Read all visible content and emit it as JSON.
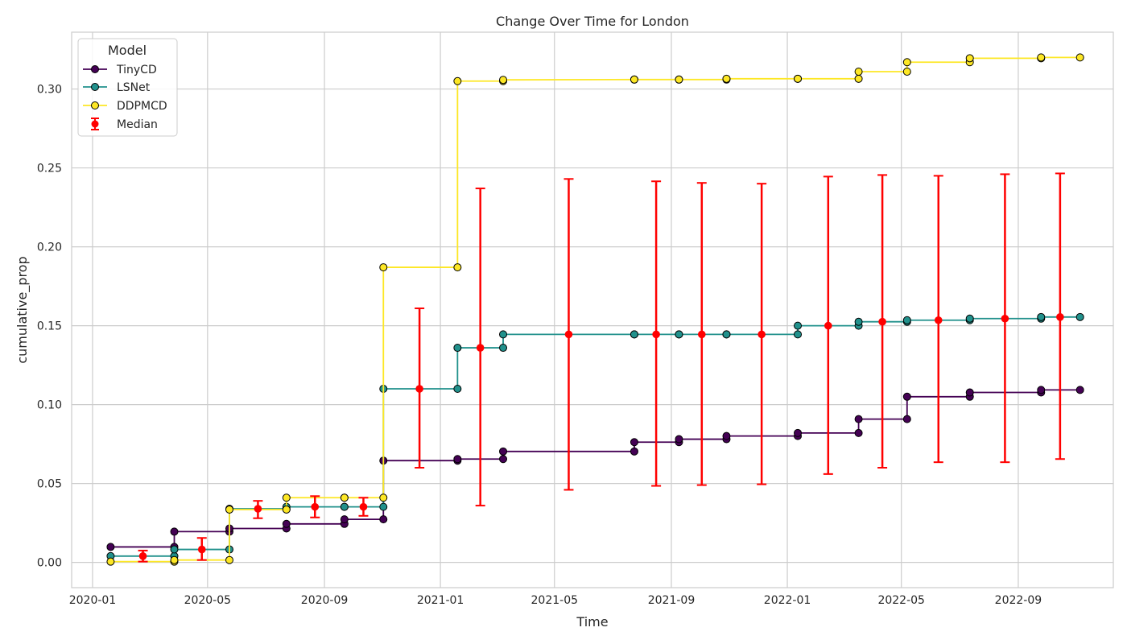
{
  "chart_data": {
    "type": "line",
    "title": "Change Over Time for London",
    "xlabel": "Time",
    "ylabel": "cumulative_prop",
    "x_ticks": [
      "2020-01",
      "2020-05",
      "2020-09",
      "2021-01",
      "2021-05",
      "2021-09",
      "2022-01",
      "2022-05",
      "2022-09"
    ],
    "y_ticks": [
      "0.00",
      "0.05",
      "0.10",
      "0.15",
      "0.20",
      "0.25",
      "0.30"
    ],
    "xlim": [
      "2019-12-10",
      "2022-12-10"
    ],
    "ylim": [
      -0.016,
      0.336
    ],
    "grid": true,
    "legend": {
      "title": "Model",
      "position": "top-left"
    },
    "colors": {
      "TinyCD": "#440154",
      "LSNet": "#21918c",
      "DDPMCD": "#fde725",
      "Median": "#ff0000",
      "marker_edge": "#000000",
      "grid": "#cccccc",
      "frame": "#cccccc"
    },
    "series": [
      {
        "name": "TinyCD",
        "points": [
          [
            "2020-01-20",
            0.0098
          ],
          [
            "2020-03-27",
            0.0098
          ],
          [
            "2020-03-27",
            0.0195
          ],
          [
            "2020-05-24",
            0.0195
          ],
          [
            "2020-05-24",
            0.0215
          ],
          [
            "2020-07-23",
            0.0215
          ],
          [
            "2020-07-23",
            0.0244
          ],
          [
            "2020-09-22",
            0.0244
          ],
          [
            "2020-09-22",
            0.0273
          ],
          [
            "2020-11-02",
            0.0273
          ],
          [
            "2020-11-02",
            0.0645
          ],
          [
            "2021-01-19",
            0.0645
          ],
          [
            "2021-01-19",
            0.0655
          ],
          [
            "2021-03-08",
            0.0655
          ],
          [
            "2021-03-08",
            0.0703
          ],
          [
            "2021-07-24",
            0.0703
          ],
          [
            "2021-07-24",
            0.0762
          ],
          [
            "2021-09-09",
            0.0762
          ],
          [
            "2021-09-09",
            0.0781
          ],
          [
            "2021-10-29",
            0.0781
          ],
          [
            "2021-10-29",
            0.0801
          ],
          [
            "2022-01-12",
            0.0801
          ],
          [
            "2022-01-12",
            0.082
          ],
          [
            "2022-03-17",
            0.082
          ],
          [
            "2022-03-17",
            0.0908
          ],
          [
            "2022-05-07",
            0.0908
          ],
          [
            "2022-05-07",
            0.105
          ],
          [
            "2022-07-12",
            0.105
          ],
          [
            "2022-07-12",
            0.1077
          ],
          [
            "2022-09-25",
            0.1077
          ],
          [
            "2022-09-25",
            0.1093
          ],
          [
            "2022-11-05",
            0.1093
          ]
        ]
      },
      {
        "name": "LSNet",
        "points": [
          [
            "2020-01-20",
            0.004
          ],
          [
            "2020-03-27",
            0.004
          ],
          [
            "2020-03-27",
            0.0082
          ],
          [
            "2020-05-24",
            0.0082
          ],
          [
            "2020-05-24",
            0.034
          ],
          [
            "2020-07-23",
            0.034
          ],
          [
            "2020-07-23",
            0.0352
          ],
          [
            "2020-09-22",
            0.0352
          ],
          [
            "2020-09-22",
            0.0352
          ],
          [
            "2020-11-02",
            0.0352
          ],
          [
            "2020-11-02",
            0.11
          ],
          [
            "2021-01-19",
            0.11
          ],
          [
            "2021-01-19",
            0.136
          ],
          [
            "2021-03-08",
            0.136
          ],
          [
            "2021-03-08",
            0.1445
          ],
          [
            "2021-07-24",
            0.1445
          ],
          [
            "2021-07-24",
            0.1445
          ],
          [
            "2021-09-09",
            0.1445
          ],
          [
            "2021-09-09",
            0.1445
          ],
          [
            "2021-10-29",
            0.1445
          ],
          [
            "2021-10-29",
            0.1445
          ],
          [
            "2022-01-12",
            0.1445
          ],
          [
            "2022-01-12",
            0.15
          ],
          [
            "2022-03-17",
            0.15
          ],
          [
            "2022-03-17",
            0.1525
          ],
          [
            "2022-05-07",
            0.1525
          ],
          [
            "2022-05-07",
            0.1535
          ],
          [
            "2022-07-12",
            0.1535
          ],
          [
            "2022-07-12",
            0.1545
          ],
          [
            "2022-09-25",
            0.1545
          ],
          [
            "2022-09-25",
            0.1555
          ],
          [
            "2022-11-05",
            0.1555
          ]
        ]
      },
      {
        "name": "DDPMCD",
        "points": [
          [
            "2020-01-20",
            0.0005
          ],
          [
            "2020-03-27",
            0.0005
          ],
          [
            "2020-03-27",
            0.0015
          ],
          [
            "2020-05-24",
            0.0015
          ],
          [
            "2020-05-24",
            0.0335
          ],
          [
            "2020-07-23",
            0.0335
          ],
          [
            "2020-07-23",
            0.041
          ],
          [
            "2020-09-22",
            0.041
          ],
          [
            "2020-09-22",
            0.041
          ],
          [
            "2020-11-02",
            0.041
          ],
          [
            "2020-11-02",
            0.187
          ],
          [
            "2021-01-19",
            0.187
          ],
          [
            "2021-01-19",
            0.305
          ],
          [
            "2021-03-08",
            0.305
          ],
          [
            "2021-03-08",
            0.3058
          ],
          [
            "2021-07-24",
            0.306
          ],
          [
            "2021-07-24",
            0.306
          ],
          [
            "2021-09-09",
            0.306
          ],
          [
            "2021-09-09",
            0.306
          ],
          [
            "2021-10-29",
            0.306
          ],
          [
            "2021-10-29",
            0.3065
          ],
          [
            "2022-01-12",
            0.3065
          ],
          [
            "2022-01-12",
            0.3065
          ],
          [
            "2022-03-17",
            0.3065
          ],
          [
            "2022-03-17",
            0.311
          ],
          [
            "2022-05-07",
            0.311
          ],
          [
            "2022-05-07",
            0.317
          ],
          [
            "2022-07-12",
            0.317
          ],
          [
            "2022-07-12",
            0.3195
          ],
          [
            "2022-09-25",
            0.3195
          ],
          [
            "2022-09-25",
            0.32
          ],
          [
            "2022-11-05",
            0.32
          ]
        ]
      }
    ],
    "median": {
      "name": "Median",
      "points": [
        {
          "x": "2020-02-23",
          "y": 0.004,
          "low": 0.0005,
          "high": 0.0075
        },
        {
          "x": "2020-04-25",
          "y": 0.0082,
          "low": 0.0015,
          "high": 0.0155
        },
        {
          "x": "2020-06-23",
          "y": 0.034,
          "low": 0.028,
          "high": 0.039
        },
        {
          "x": "2020-08-22",
          "y": 0.0352,
          "low": 0.0285,
          "high": 0.042
        },
        {
          "x": "2020-10-12",
          "y": 0.0352,
          "low": 0.0295,
          "high": 0.041
        },
        {
          "x": "2020-12-10",
          "y": 0.11,
          "low": 0.06,
          "high": 0.161
        },
        {
          "x": "2021-02-12",
          "y": 0.136,
          "low": 0.036,
          "high": 0.237
        },
        {
          "x": "2021-05-16",
          "y": 0.1445,
          "low": 0.046,
          "high": 0.243
        },
        {
          "x": "2021-08-16",
          "y": 0.1445,
          "low": 0.0485,
          "high": 0.2415
        },
        {
          "x": "2021-10-03",
          "y": 0.1445,
          "low": 0.049,
          "high": 0.2405
        },
        {
          "x": "2021-12-05",
          "y": 0.1445,
          "low": 0.0495,
          "high": 0.24
        },
        {
          "x": "2022-02-13",
          "y": 0.15,
          "low": 0.056,
          "high": 0.2445
        },
        {
          "x": "2022-04-11",
          "y": 0.1525,
          "low": 0.06,
          "high": 0.2455
        },
        {
          "x": "2022-06-09",
          "y": 0.1535,
          "low": 0.0635,
          "high": 0.245
        },
        {
          "x": "2022-08-18",
          "y": 0.1545,
          "low": 0.0635,
          "high": 0.246
        },
        {
          "x": "2022-10-15",
          "y": 0.1555,
          "low": 0.0655,
          "high": 0.2465
        }
      ]
    }
  }
}
